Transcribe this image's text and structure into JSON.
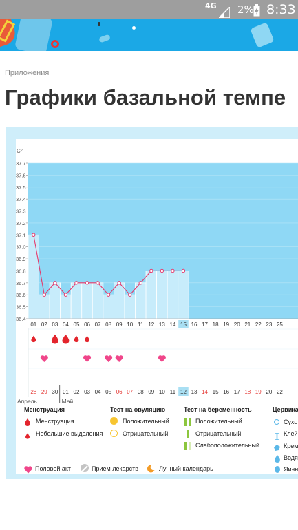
{
  "status_bar": {
    "network": "4G",
    "battery_percent": "2%",
    "time": "8:33"
  },
  "breadcrumb": "Приложения",
  "page_title": "Графики базальной темпе",
  "chart_data": {
    "type": "line",
    "ylabel": "C°",
    "ylim": [
      36.4,
      37.7
    ],
    "y_ticks": [
      "37.7",
      "37.6",
      "37.5",
      "37.4",
      "37.3",
      "37.2",
      "37.1",
      "37.0",
      "36.9",
      "36.8",
      "36.7",
      "36.6",
      "36.5",
      "36.4"
    ],
    "cycle_days": [
      "01",
      "02",
      "03",
      "04",
      "05",
      "06",
      "07",
      "08",
      "09",
      "10",
      "11",
      "12",
      "13",
      "14",
      "15",
      "16",
      "17",
      "18",
      "19",
      "20",
      "21",
      "22",
      "23",
      "25"
    ],
    "current_day": "15",
    "series": [
      {
        "values": [
          37.1,
          36.6,
          36.7,
          36.6,
          36.7,
          36.7,
          36.7,
          36.6,
          36.7,
          36.6,
          36.7,
          36.8,
          36.8,
          36.8,
          36.8
        ]
      }
    ],
    "menstruation_days": [
      1,
      3,
      4,
      5,
      6
    ],
    "menstruation_large": [
      false,
      true,
      true,
      false,
      false
    ],
    "intercourse_days": [
      2,
      6,
      8,
      9,
      13
    ],
    "calendar_dates": [
      "28",
      "29",
      "30",
      "01",
      "02",
      "03",
      "04",
      "05",
      "06",
      "07",
      "08",
      "09",
      "10",
      "11",
      "12",
      "13",
      "14",
      "15",
      "16",
      "17",
      "18",
      "19",
      "20",
      "22"
    ],
    "calendar_red_indices": [
      0,
      1,
      8,
      9,
      16,
      20,
      21
    ],
    "calendar_current_index": 14,
    "month_labels": [
      "Апрель",
      "Май"
    ]
  },
  "legend": {
    "menstruation": {
      "title": "Менструация",
      "items": [
        "Менструация",
        "Небольшие выделения"
      ]
    },
    "ovulation_test": {
      "title": "Тест на овуляцию",
      "items": [
        "Положительный",
        "Отрицательный"
      ]
    },
    "pregnancy_test": {
      "title": "Тест на беременность",
      "items": [
        "Положительный",
        "Отрицательный",
        "Слабоположительный"
      ]
    },
    "cervical": {
      "title": "Цервика",
      "items": [
        "Сухо",
        "Клей",
        "Крем",
        "Водя",
        "Яичн"
      ]
    },
    "bottom_items": [
      "Половой акт",
      "Прием лекарств",
      "Лунный календарь"
    ]
  },
  "colors": {
    "chart_bg": "#8fd8f5",
    "bar": "#c7ecfb",
    "line": "#e5386b",
    "heart": "#f0468a",
    "drop": "#e3252d",
    "highlight": "#a9dff3"
  }
}
